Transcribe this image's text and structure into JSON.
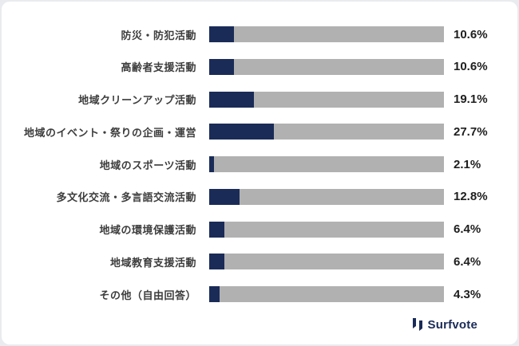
{
  "page": {
    "background_color": "#e9ebee",
    "card_background_color": "#ffffff"
  },
  "chart_data": {
    "type": "bar",
    "orientation": "horizontal",
    "title": "",
    "xlabel": "",
    "ylabel": "",
    "xlim": [
      0,
      100
    ],
    "grid": false,
    "legend": false,
    "bar_color": "#1a2b57",
    "track_color": "#b1b1b1",
    "categories": [
      "防災・防犯活動",
      "高齢者支援活動",
      "地域クリーンアップ活動",
      "地域のイベント・祭りの企画・運営",
      "地域のスポーツ活動",
      "多文化交流・多言語交流活動",
      "地域の環境保護活動",
      "地域教育支援活動",
      "その他（自由回答）"
    ],
    "values": [
      10.6,
      10.6,
      19.1,
      27.7,
      2.1,
      12.8,
      6.4,
      6.4,
      4.3
    ],
    "value_labels": [
      "10.6%",
      "10.6%",
      "19.1%",
      "27.7%",
      "2.1%",
      "12.8%",
      "6.4%",
      "6.4%",
      "4.3%"
    ]
  },
  "footer": {
    "brand": "Surfvote"
  }
}
